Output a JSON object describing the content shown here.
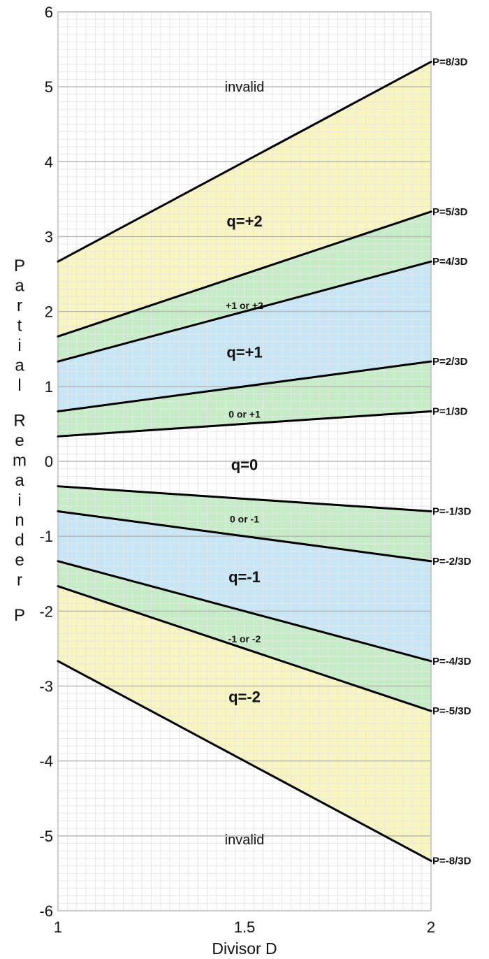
{
  "chart_data": {
    "type": "line",
    "xlabel": "Divisor D",
    "ylabel": "Partial Remainder P",
    "xlim": [
      1,
      2
    ],
    "ylim": [
      -6,
      6
    ],
    "x_ticks": [
      "1",
      "1.5",
      "2"
    ],
    "y_ticks": [
      "6",
      "5",
      "4",
      "3",
      "2",
      "1",
      "0",
      "-1",
      "-2",
      "-3",
      "-4",
      "-5",
      "-6"
    ],
    "grid": true,
    "colors": {
      "q2_region": "#f8f5bf",
      "overlap_region": "#c5edc5",
      "q1_region": "#c6e5f5",
      "line": "#000000",
      "grid_major": "#b8b8b8",
      "grid_minor": "#e6e6e6"
    },
    "series": [
      {
        "name": "P=8/3D",
        "slope": 2.6667,
        "x": [
          1,
          2
        ],
        "y": [
          2.667,
          5.333
        ]
      },
      {
        "name": "P=5/3D",
        "slope": 1.6667,
        "x": [
          1,
          2
        ],
        "y": [
          1.667,
          3.333
        ]
      },
      {
        "name": "P=4/3D",
        "slope": 1.3333,
        "x": [
          1,
          2
        ],
        "y": [
          1.333,
          2.667
        ]
      },
      {
        "name": "P=2/3D",
        "slope": 0.6667,
        "x": [
          1,
          2
        ],
        "y": [
          0.667,
          1.333
        ]
      },
      {
        "name": "P=1/3D",
        "slope": 0.3333,
        "x": [
          1,
          2
        ],
        "y": [
          0.333,
          0.667
        ]
      },
      {
        "name": "P=-1/3D",
        "slope": -0.3333,
        "x": [
          1,
          2
        ],
        "y": [
          -0.333,
          -0.667
        ]
      },
      {
        "name": "P=-2/3D",
        "slope": -0.6667,
        "x": [
          1,
          2
        ],
        "y": [
          -0.667,
          -1.333
        ]
      },
      {
        "name": "P=-4/3D",
        "slope": -1.3333,
        "x": [
          1,
          2
        ],
        "y": [
          -1.333,
          -2.667
        ]
      },
      {
        "name": "P=-5/3D",
        "slope": -1.6667,
        "x": [
          1,
          2
        ],
        "y": [
          -1.667,
          -3.333
        ]
      },
      {
        "name": "P=-8/3D",
        "slope": -2.6667,
        "x": [
          1,
          2
        ],
        "y": [
          -2.667,
          -5.333
        ]
      }
    ],
    "regions": [
      {
        "label": "invalid",
        "x": 1.5,
        "y": 5.0,
        "style": "plain"
      },
      {
        "label": "q=+2",
        "x": 1.5,
        "y": 3.2,
        "style": "big"
      },
      {
        "label": "+1 or +2",
        "x": 1.5,
        "y": 2.1,
        "style": "small"
      },
      {
        "label": "q=+1",
        "x": 1.5,
        "y": 1.45,
        "style": "big"
      },
      {
        "label": "0 or +1",
        "x": 1.5,
        "y": 0.65,
        "style": "small"
      },
      {
        "label": "q=0",
        "x": 1.5,
        "y": -0.05,
        "style": "big"
      },
      {
        "label": "0 or -1",
        "x": 1.5,
        "y": -0.75,
        "style": "small"
      },
      {
        "label": "q=-1",
        "x": 1.5,
        "y": -1.55,
        "style": "big"
      },
      {
        "label": "-1 or -2",
        "x": 1.5,
        "y": -2.35,
        "style": "small"
      },
      {
        "label": "q=-2",
        "x": 1.5,
        "y": -3.15,
        "style": "big"
      },
      {
        "label": "invalid",
        "x": 1.5,
        "y": -5.05,
        "style": "plain"
      }
    ]
  }
}
